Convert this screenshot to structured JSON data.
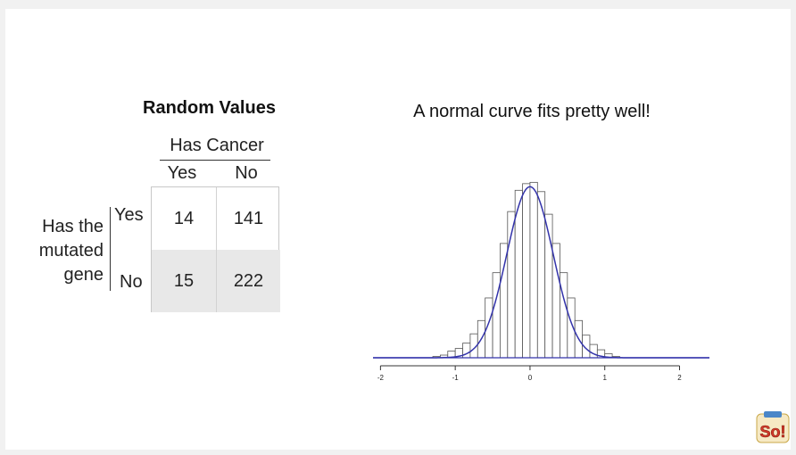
{
  "table": {
    "title": "Random Values",
    "col_group_label": "Has Cancer",
    "col_labels": [
      "Yes",
      "No"
    ],
    "row_group_label_lines": [
      "Has the",
      "mutated",
      "gene"
    ],
    "row_labels": [
      "Yes",
      "No"
    ],
    "cells": [
      [
        "14",
        "141"
      ],
      [
        "15",
        "222"
      ]
    ]
  },
  "chart_data": {
    "type": "bar",
    "title": "A normal curve fits pretty well!",
    "xlabel": "",
    "ylabel": "",
    "xlim": [
      -2.1,
      2.4
    ],
    "xticks": [
      "-2",
      "-1",
      "0",
      "1",
      "2"
    ],
    "bin_width": 0.1,
    "bin_starts": [
      -2.0,
      -1.9,
      -1.8,
      -1.7,
      -1.6,
      -1.5,
      -1.4,
      -1.3,
      -1.2,
      -1.1,
      -1.0,
      -0.9,
      -0.8,
      -0.7,
      -0.6,
      -0.5,
      -0.4,
      -0.3,
      -0.2,
      -0.1,
      0.0,
      0.1,
      0.2,
      0.3,
      0.4,
      0.5,
      0.6,
      0.7,
      0.8,
      0.9,
      1.0,
      1.1,
      1.2,
      1.3,
      1.4,
      1.5,
      1.6,
      1.7,
      1.8,
      1.9
    ],
    "densities": [
      0.0,
      0.0,
      0.0,
      0.0,
      0.0,
      0.0,
      0.0,
      0.01,
      0.02,
      0.05,
      0.07,
      0.11,
      0.18,
      0.28,
      0.45,
      0.64,
      0.86,
      1.1,
      1.26,
      1.31,
      1.32,
      1.25,
      1.08,
      0.86,
      0.64,
      0.45,
      0.28,
      0.17,
      0.1,
      0.06,
      0.03,
      0.01,
      0.0,
      0.0,
      0.0,
      0.0,
      0.0,
      0.0,
      0.0,
      0.0
    ],
    "ylim": [
      0,
      1.45
    ],
    "grid": false,
    "fit_curve": {
      "type": "normal",
      "mean": 0.0,
      "sd": 0.31,
      "color": "#3333aa"
    },
    "bar_edge_color": "#555555",
    "bar_fill_color": "#ffffff"
  },
  "logo": {
    "text": "So!"
  }
}
